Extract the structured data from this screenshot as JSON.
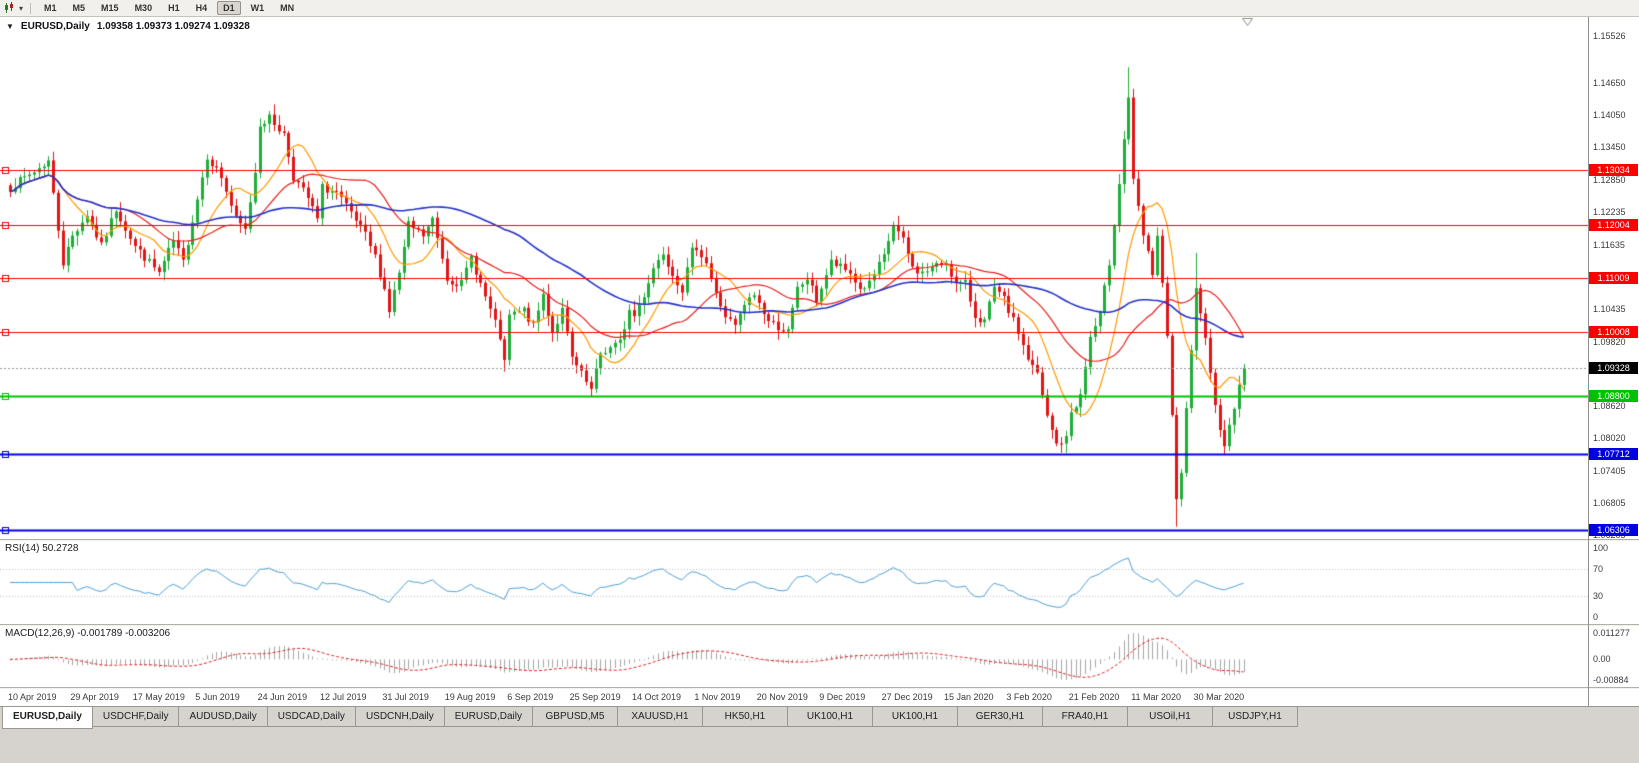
{
  "toolbar": {
    "chart_type_icon": "candlestick-chart-icon",
    "dropdown_icon": "chevron-down-icon",
    "timeframes": [
      {
        "label": "M1",
        "active": false
      },
      {
        "label": "M5",
        "active": false
      },
      {
        "label": "M15",
        "active": false
      },
      {
        "label": "M30",
        "active": false
      },
      {
        "label": "H1",
        "active": false
      },
      {
        "label": "H4",
        "active": false
      },
      {
        "label": "D1",
        "active": true
      },
      {
        "label": "W1",
        "active": false
      },
      {
        "label": "MN",
        "active": false
      }
    ]
  },
  "chart_header": {
    "collapse_icon": "triangle-down-icon",
    "symbol": "EURUSD,Daily",
    "ohlc": "1.09358 1.09373 1.09274 1.09328"
  },
  "rsi_panel": {
    "header": "RSI(14) 50.2728",
    "value": 50.2728,
    "ticks": [
      {
        "label": "100",
        "value": 100
      },
      {
        "label": "70",
        "value": 70
      },
      {
        "label": "30",
        "value": 30
      },
      {
        "label": "0",
        "value": 0
      }
    ],
    "dotted_levels": [
      70,
      30
    ]
  },
  "macd_panel": {
    "header": "MACD(12,26,9) -0.001789 -0.003206",
    "values": [
      -0.001789,
      -0.003206
    ],
    "ticks": [
      {
        "label": "0.011277",
        "value": 0.011277
      },
      {
        "label": "0.00",
        "value": 0
      },
      {
        "label": "-0.00884",
        "value": -0.00884
      }
    ]
  },
  "price_axis": {
    "ticks": [
      {
        "label": "1.15526",
        "price": 1.15526
      },
      {
        "label": "1.14650",
        "price": 1.1465
      },
      {
        "label": "1.14050",
        "price": 1.1405
      },
      {
        "label": "1.13450",
        "price": 1.1345
      },
      {
        "label": "1.12850",
        "price": 1.1285
      },
      {
        "label": "1.12235",
        "price": 1.12235
      },
      {
        "label": "1.11635",
        "price": 1.11635
      },
      {
        "label": "1.10435",
        "price": 1.10435
      },
      {
        "label": "1.09820",
        "price": 1.0982
      },
      {
        "label": "1.08620",
        "price": 1.0862
      },
      {
        "label": "1.08020",
        "price": 1.0802
      },
      {
        "label": "1.07405",
        "price": 1.07405
      },
      {
        "label": "1.06805",
        "price": 1.06805
      },
      {
        "label": "1.06205",
        "price": 1.06205
      }
    ],
    "line_labels": [
      {
        "label": "1.13034",
        "price": 1.13034,
        "color": "#ff0000"
      },
      {
        "label": "1.12004",
        "price": 1.12004,
        "color": "#ff0000"
      },
      {
        "label": "1.11009",
        "price": 1.11009,
        "color": "#ff0000"
      },
      {
        "label": "1.10008",
        "price": 1.10008,
        "color": "#ff0000"
      },
      {
        "label": "1.08800",
        "price": 1.088,
        "color": "#00c000"
      },
      {
        "label": "1.07712",
        "price": 1.07712,
        "color": "#0000e0"
      },
      {
        "label": "1.06306",
        "price": 1.06306,
        "color": "#0000e0"
      }
    ],
    "current": {
      "label": "1.09328",
      "price": 1.09328,
      "color": "#000000"
    }
  },
  "date_axis": {
    "labels": [
      "10 Apr 2019",
      "29 Apr 2019",
      "17 May 2019",
      "5 Jun 2019",
      "24 Jun 2019",
      "12 Jul 2019",
      "31 Jul 2019",
      "19 Aug 2019",
      "6 Sep 2019",
      "25 Sep 2019",
      "14 Oct 2019",
      "1 Nov 2019",
      "20 Nov 2019",
      "9 Dec 2019",
      "27 Dec 2019",
      "15 Jan 2020",
      "3 Feb 2020",
      "21 Feb 2020",
      "11 Mar 2020",
      "30 Mar 2020"
    ]
  },
  "tabs": [
    {
      "label": "EURUSD,Daily",
      "active": true
    },
    {
      "label": "USDCHF,Daily",
      "active": false
    },
    {
      "label": "AUDUSD,Daily",
      "active": false
    },
    {
      "label": "USDCAD,Daily",
      "active": false
    },
    {
      "label": "USDCNH,Daily",
      "active": false
    },
    {
      "label": "EURUSD,Daily",
      "active": false
    },
    {
      "label": "GBPUSD,M5",
      "active": false
    },
    {
      "label": "XAUUSD,H1",
      "active": false
    },
    {
      "label": "HK50,H1",
      "active": false
    },
    {
      "label": "UK100,H1",
      "active": false
    },
    {
      "label": "UK100,H1",
      "active": false
    },
    {
      "label": "GER30,H1",
      "active": false
    },
    {
      "label": "FRA40,H1",
      "active": false
    },
    {
      "label": "USOil,H1",
      "active": false
    },
    {
      "label": "USDJPY,H1",
      "active": false
    }
  ],
  "colors": {
    "candle_up": "#1fae38",
    "candle_down": "#e21414",
    "ma_fast": "#ff9a00",
    "ma_medium": "#e82020",
    "ma_slow": "#2432c8",
    "rsi_line": "#4f9fd6",
    "rsi_level_dots": "#c0c0c0",
    "macd_histogram": "#a6a6a6",
    "macd_signal": "#e02020",
    "hline_red": "#ff0000",
    "hline_green": "#00c000",
    "hline_blue": "#0000e0",
    "current_price_line": "#9a9a9a",
    "axis_text": "#3a3a3a"
  },
  "chart_data": {
    "type": "candlestick",
    "symbol": "EURUSD",
    "timeframe": "Daily",
    "bars": 258,
    "price_scale": {
      "top": 1.1589,
      "bottom": 1.0611
    },
    "open": 1.09358,
    "high": 1.09373,
    "low": 1.09274,
    "close": 1.09328,
    "current_price": 1.09328,
    "anchors": [
      [
        0,
        1.127
      ],
      [
        5,
        1.13
      ],
      [
        8,
        1.132
      ],
      [
        11,
        1.113
      ],
      [
        13,
        1.118
      ],
      [
        16,
        1.122
      ],
      [
        19,
        1.116
      ],
      [
        22,
        1.123
      ],
      [
        26,
        1.116
      ],
      [
        29,
        1.113
      ],
      [
        31,
        1.111
      ],
      [
        34,
        1.117
      ],
      [
        36,
        1.113
      ],
      [
        39,
        1.125
      ],
      [
        41,
        1.133
      ],
      [
        44,
        1.129
      ],
      [
        47,
        1.121
      ],
      [
        49,
        1.119
      ],
      [
        51,
        1.13
      ],
      [
        52,
        1.139
      ],
      [
        54,
        1.14
      ],
      [
        57,
        1.137
      ],
      [
        59,
        1.129
      ],
      [
        62,
        1.125
      ],
      [
        64,
        1.121
      ],
      [
        65,
        1.127
      ],
      [
        68,
        1.126
      ],
      [
        71,
        1.122
      ],
      [
        74,
        1.118
      ],
      [
        76,
        1.114
      ],
      [
        78,
        1.108
      ],
      [
        79,
        1.104
      ],
      [
        81,
        1.111
      ],
      [
        83,
        1.12
      ],
      [
        86,
        1.118
      ],
      [
        88,
        1.121
      ],
      [
        90,
        1.114
      ],
      [
        91,
        1.11
      ],
      [
        94,
        1.109
      ],
      [
        96,
        1.114
      ],
      [
        98,
        1.109
      ],
      [
        100,
        1.104
      ],
      [
        102,
        1.099
      ],
      [
        103,
        1.094
      ],
      [
        104,
        1.103
      ],
      [
        107,
        1.104
      ],
      [
        109,
        1.101
      ],
      [
        111,
        1.107
      ],
      [
        113,
        1.1
      ],
      [
        115,
        1.104
      ],
      [
        117,
        1.095
      ],
      [
        119,
        1.092
      ],
      [
        121,
        1.089
      ],
      [
        123,
        1.096
      ],
      [
        125,
        1.097
      ],
      [
        127,
        1.098
      ],
      [
        129,
        1.104
      ],
      [
        130,
        1.103
      ],
      [
        132,
        1.107
      ],
      [
        134,
        1.112
      ],
      [
        136,
        1.115
      ],
      [
        138,
        1.111
      ],
      [
        140,
        1.108
      ],
      [
        142,
        1.115
      ],
      [
        143,
        1.116
      ],
      [
        145,
        1.113
      ],
      [
        147,
        1.107
      ],
      [
        149,
        1.103
      ],
      [
        151,
        1.101
      ],
      [
        153,
        1.105
      ],
      [
        155,
        1.107
      ],
      [
        158,
        1.102
      ],
      [
        160,
        1.101
      ],
      [
        162,
        1.1
      ],
      [
        164,
        1.108
      ],
      [
        166,
        1.11
      ],
      [
        168,
        1.106
      ],
      [
        171,
        1.113
      ],
      [
        173,
        1.112
      ],
      [
        175,
        1.111
      ],
      [
        177,
        1.108
      ],
      [
        179,
        1.109
      ],
      [
        182,
        1.114
      ],
      [
        184,
        1.12
      ],
      [
        186,
        1.117
      ],
      [
        188,
        1.112
      ],
      [
        190,
        1.111
      ],
      [
        192,
        1.112
      ],
      [
        195,
        1.113
      ],
      [
        197,
        1.109
      ],
      [
        199,
        1.109
      ],
      [
        201,
        1.103
      ],
      [
        203,
        1.102
      ],
      [
        205,
        1.108
      ],
      [
        207,
        1.106
      ],
      [
        210,
        1.1
      ],
      [
        212,
        1.095
      ],
      [
        214,
        1.092
      ],
      [
        216,
        1.084
      ],
      [
        218,
        1.079
      ],
      [
        220,
        1.08
      ],
      [
        221,
        1.085
      ],
      [
        223,
        1.088
      ],
      [
        225,
        1.099
      ],
      [
        227,
        1.103
      ],
      [
        229,
        1.113
      ],
      [
        231,
        1.128
      ],
      [
        233,
        1.144
      ],
      [
        234,
        1.128
      ],
      [
        236,
        1.118
      ],
      [
        238,
        1.111
      ],
      [
        239,
        1.118
      ],
      [
        241,
        1.099
      ],
      [
        243,
        1.069
      ],
      [
        244,
        1.073
      ],
      [
        245,
        1.085
      ],
      [
        246,
        1.096
      ],
      [
        247,
        1.109
      ],
      [
        248,
        1.104
      ],
      [
        250,
        1.093
      ],
      [
        252,
        1.081
      ],
      [
        253,
        1.079
      ],
      [
        255,
        1.086
      ],
      [
        257,
        1.09328
      ]
    ],
    "extremes": [
      {
        "bar": 8,
        "high": 1.1324
      },
      {
        "bar": 54,
        "high": 1.1412
      },
      {
        "bar": 103,
        "low": 1.0926
      },
      {
        "bar": 121,
        "low": 1.0879
      },
      {
        "bar": 220,
        "low": 1.0778
      },
      {
        "bar": 233,
        "high": 1.1495
      },
      {
        "bar": 243,
        "low": 1.0636
      },
      {
        "bar": 247,
        "high": 1.1148
      }
    ],
    "hlines": [
      {
        "price": 1.13034,
        "color": "#ff0000",
        "width": 1
      },
      {
        "price": 1.12004,
        "color": "#ff0000",
        "width": 1
      },
      {
        "price": 1.11009,
        "color": "#ff0000",
        "width": 1
      },
      {
        "price": 1.10008,
        "color": "#ff0000",
        "width": 1
      },
      {
        "price": 1.088,
        "color": "#00c000",
        "width": 2
      },
      {
        "price": 1.07712,
        "color": "#0000e0",
        "width": 2
      },
      {
        "price": 1.06306,
        "color": "#0000e0",
        "width": 2
      }
    ],
    "moving_averages": [
      {
        "period": 10,
        "color_key": "ma_fast"
      },
      {
        "period": 25,
        "color_key": "ma_medium"
      },
      {
        "period": 55,
        "color_key": "ma_slow"
      }
    ],
    "rsi_period": 14,
    "macd_params": {
      "fast": 12,
      "slow": 26,
      "signal": 9
    }
  }
}
